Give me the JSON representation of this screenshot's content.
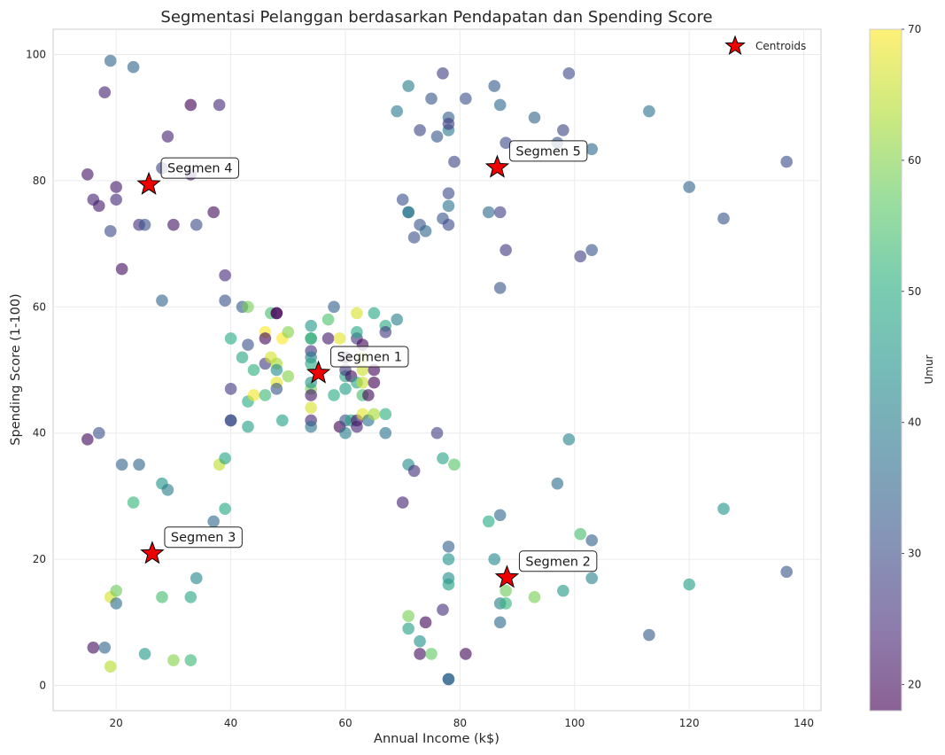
{
  "chart_data": {
    "type": "scatter",
    "title": "Segmentasi Pelanggan berdasarkan Pendapatan dan Spending Score",
    "xlabel": "Annual Income (k$)",
    "ylabel": "Spending Score (1-100)",
    "xlim": [
      9,
      143
    ],
    "ylim": [
      -4,
      104
    ],
    "xticks": [
      20,
      40,
      60,
      80,
      100,
      120,
      140
    ],
    "yticks": [
      0,
      20,
      40,
      60,
      80,
      100
    ],
    "grid": true,
    "legend": {
      "placement": "top-right",
      "label": "Centroids"
    },
    "colorbar": {
      "label": "Umur",
      "min": 18,
      "max": 70,
      "ticks": [
        20,
        30,
        40,
        50,
        60,
        70
      ],
      "colormap": "viridis"
    },
    "points": [
      [
        15,
        39,
        19
      ],
      [
        15,
        81,
        21
      ],
      [
        16,
        6,
        20
      ],
      [
        16,
        77,
        23
      ],
      [
        17,
        40,
        31
      ],
      [
        17,
        76,
        22
      ],
      [
        18,
        6,
        35
      ],
      [
        18,
        94,
        23
      ],
      [
        19,
        3,
        64
      ],
      [
        19,
        72,
        30
      ],
      [
        19,
        14,
        67
      ],
      [
        19,
        99,
        35
      ],
      [
        20,
        15,
        58
      ],
      [
        20,
        77,
        24
      ],
      [
        20,
        13,
        37
      ],
      [
        20,
        79,
        22
      ],
      [
        21,
        35,
        35
      ],
      [
        21,
        66,
        20
      ],
      [
        23,
        29,
        52
      ],
      [
        23,
        98,
        35
      ],
      [
        24,
        35,
        35
      ],
      [
        24,
        73,
        25
      ],
      [
        25,
        5,
        46
      ],
      [
        25,
        73,
        31
      ],
      [
        28,
        14,
        54
      ],
      [
        28,
        82,
        29
      ],
      [
        28,
        32,
        45
      ],
      [
        28,
        61,
        35
      ],
      [
        29,
        31,
        40
      ],
      [
        29,
        87,
        23
      ],
      [
        30,
        4,
        60
      ],
      [
        30,
        73,
        21
      ],
      [
        33,
        4,
        53
      ],
      [
        33,
        92,
        18
      ],
      [
        33,
        14,
        49
      ],
      [
        33,
        81,
        21
      ],
      [
        34,
        17,
        42
      ],
      [
        34,
        73,
        30
      ],
      [
        37,
        26,
        36
      ],
      [
        37,
        75,
        20
      ],
      [
        38,
        35,
        65
      ],
      [
        38,
        92,
        24
      ],
      [
        39,
        36,
        48
      ],
      [
        39,
        61,
        31
      ],
      [
        39,
        28,
        49
      ],
      [
        39,
        65,
        24
      ],
      [
        40,
        55,
        50
      ],
      [
        40,
        47,
        27
      ],
      [
        40,
        42,
        29
      ],
      [
        40,
        42,
        31
      ],
      [
        42,
        52,
        49
      ],
      [
        42,
        60,
        33
      ],
      [
        43,
        54,
        31
      ],
      [
        43,
        60,
        59
      ],
      [
        43,
        45,
        50
      ],
      [
        43,
        41,
        47
      ],
      [
        44,
        50,
        51
      ],
      [
        44,
        46,
        69
      ],
      [
        46,
        51,
        27
      ],
      [
        46,
        46,
        53
      ],
      [
        46,
        56,
        70
      ],
      [
        46,
        55,
        19
      ],
      [
        47,
        52,
        67
      ],
      [
        47,
        59,
        54
      ],
      [
        48,
        51,
        63
      ],
      [
        48,
        59,
        18
      ],
      [
        48,
        50,
        43
      ],
      [
        48,
        48,
        68
      ],
      [
        48,
        59,
        19
      ],
      [
        48,
        47,
        32
      ],
      [
        49,
        55,
        70
      ],
      [
        49,
        42,
        47
      ],
      [
        50,
        49,
        60
      ],
      [
        50,
        56,
        60
      ],
      [
        54,
        47,
        59
      ],
      [
        54,
        53,
        26
      ],
      [
        54,
        48,
        45
      ],
      [
        54,
        52,
        40
      ],
      [
        54,
        42,
        23
      ],
      [
        54,
        51,
        49
      ],
      [
        54,
        55,
        57
      ],
      [
        54,
        41,
        38
      ],
      [
        54,
        44,
        67
      ],
      [
        54,
        57,
        46
      ],
      [
        54,
        46,
        21
      ],
      [
        54,
        55,
        48
      ],
      [
        57,
        58,
        55
      ],
      [
        57,
        55,
        22
      ],
      [
        58,
        60,
        34
      ],
      [
        58,
        46,
        50
      ],
      [
        59,
        55,
        68
      ],
      [
        59,
        41,
        18
      ],
      [
        60,
        49,
        48
      ],
      [
        60,
        40,
        40
      ],
      [
        60,
        42,
        32
      ],
      [
        60,
        52,
        24
      ],
      [
        60,
        47,
        47
      ],
      [
        60,
        50,
        27
      ],
      [
        61,
        42,
        48
      ],
      [
        61,
        49,
        20
      ],
      [
        62,
        41,
        23
      ],
      [
        62,
        48,
        49
      ],
      [
        62,
        59,
        67
      ],
      [
        62,
        55,
        26
      ],
      [
        62,
        56,
        49
      ],
      [
        62,
        42,
        21
      ],
      [
        63,
        50,
        66
      ],
      [
        63,
        46,
        54
      ],
      [
        63,
        43,
        68
      ],
      [
        63,
        48,
        66
      ],
      [
        63,
        52,
        65
      ],
      [
        63,
        54,
        19
      ],
      [
        64,
        42,
        38
      ],
      [
        64,
        46,
        19
      ],
      [
        65,
        48,
        18
      ],
      [
        65,
        50,
        19
      ],
      [
        65,
        43,
        63
      ],
      [
        65,
        59,
        49
      ],
      [
        67,
        43,
        51
      ],
      [
        67,
        57,
        50
      ],
      [
        67,
        56,
        27
      ],
      [
        67,
        40,
        38
      ],
      [
        69,
        58,
        40
      ],
      [
        69,
        91,
        39
      ],
      [
        70,
        29,
        23
      ],
      [
        70,
        77,
        31
      ],
      [
        71,
        35,
        43
      ],
      [
        71,
        95,
        40
      ],
      [
        71,
        11,
        59
      ],
      [
        71,
        75,
        38
      ],
      [
        71,
        9,
        47
      ],
      [
        71,
        75,
        39
      ],
      [
        72,
        34,
        25
      ],
      [
        72,
        71,
        31
      ],
      [
        73,
        5,
        20
      ],
      [
        73,
        88,
        29
      ],
      [
        73,
        7,
        44
      ],
      [
        73,
        73,
        32
      ],
      [
        74,
        10,
        19
      ],
      [
        74,
        72,
        35
      ],
      [
        75,
        5,
        57
      ],
      [
        75,
        93,
        32
      ],
      [
        76,
        40,
        28
      ],
      [
        76,
        87,
        32
      ],
      [
        77,
        12,
        25
      ],
      [
        77,
        97,
        28
      ],
      [
        77,
        36,
        48
      ],
      [
        77,
        74,
        32
      ],
      [
        78,
        22,
        34
      ],
      [
        78,
        90,
        34
      ],
      [
        78,
        17,
        43
      ],
      [
        78,
        88,
        39
      ],
      [
        78,
        20,
        44
      ],
      [
        78,
        76,
        38
      ],
      [
        78,
        16,
        47
      ],
      [
        78,
        89,
        27
      ],
      [
        78,
        1,
        37
      ],
      [
        78,
        78,
        30
      ],
      [
        78,
        1,
        34
      ],
      [
        78,
        73,
        30
      ],
      [
        79,
        35,
        56
      ],
      [
        79,
        83,
        29
      ],
      [
        81,
        5,
        19
      ],
      [
        81,
        93,
        31
      ],
      [
        85,
        26,
        50
      ],
      [
        85,
        75,
        36
      ],
      [
        86,
        20,
        42
      ],
      [
        86,
        95,
        33
      ],
      [
        87,
        27,
        36
      ],
      [
        87,
        63,
        32
      ],
      [
        87,
        13,
        40
      ],
      [
        87,
        75,
        28
      ],
      [
        87,
        10,
        36
      ],
      [
        87,
        92,
        36
      ],
      [
        88,
        13,
        52
      ],
      [
        88,
        86,
        30
      ],
      [
        88,
        15,
        58
      ],
      [
        88,
        69,
        27
      ],
      [
        93,
        14,
        59
      ],
      [
        93,
        90,
        35
      ],
      [
        97,
        32,
        37
      ],
      [
        97,
        86,
        32
      ],
      [
        98,
        15,
        46
      ],
      [
        98,
        88,
        29
      ],
      [
        99,
        39,
        41
      ],
      [
        99,
        97,
        30
      ],
      [
        101,
        24,
        54
      ],
      [
        101,
        68,
        28
      ],
      [
        103,
        17,
        41
      ],
      [
        103,
        85,
        36
      ],
      [
        103,
        23,
        34
      ],
      [
        103,
        69,
        32
      ],
      [
        113,
        8,
        33
      ],
      [
        113,
        91,
        38
      ],
      [
        120,
        16,
        47
      ],
      [
        120,
        79,
        35
      ],
      [
        126,
        28,
        45
      ],
      [
        126,
        74,
        32
      ],
      [
        137,
        18,
        32
      ],
      [
        137,
        83,
        30
      ]
    ],
    "centroids": [
      {
        "label": "Segmen 1",
        "x": 55.3,
        "y": 49.5
      },
      {
        "label": "Segmen 2",
        "x": 88.2,
        "y": 17.1
      },
      {
        "label": "Segmen 3",
        "x": 26.3,
        "y": 20.9
      },
      {
        "label": "Segmen 4",
        "x": 25.7,
        "y": 79.4
      },
      {
        "label": "Segmen 5",
        "x": 86.5,
        "y": 82.1
      }
    ]
  }
}
